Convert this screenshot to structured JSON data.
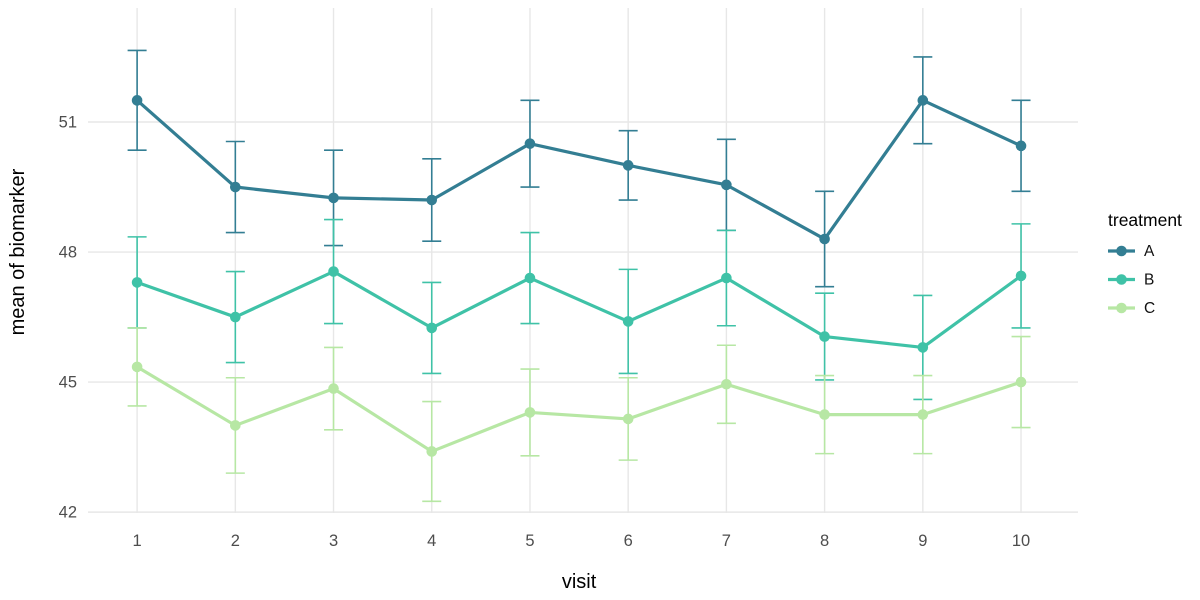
{
  "chart_data": {
    "type": "line",
    "title": "",
    "xlabel": "visit",
    "ylabel": "mean of biomarker",
    "x": [
      1,
      2,
      3,
      4,
      5,
      6,
      7,
      8,
      9,
      10
    ],
    "x_tick_labels": [
      "1",
      "2",
      "3",
      "4",
      "5",
      "6",
      "7",
      "8",
      "9",
      "10"
    ],
    "y_ticks": [
      42,
      45,
      48,
      51
    ],
    "y_tick_labels": [
      "42",
      "45",
      "48",
      "51"
    ],
    "xlim": [
      0.5,
      10.58
    ],
    "ylim": [
      41.98,
      53.63
    ],
    "grid": "major-only",
    "legend_title": "treatment",
    "legend_position": "right",
    "error_bars": true,
    "series": [
      {
        "name": "A",
        "color": "#337e93",
        "means": [
          51.5,
          49.5,
          49.25,
          49.2,
          50.5,
          50.0,
          49.55,
          48.3,
          51.5,
          50.45
        ],
        "errors": [
          1.15,
          1.05,
          1.1,
          0.95,
          1.0,
          0.8,
          1.05,
          1.1,
          1.0,
          1.05
        ]
      },
      {
        "name": "B",
        "color": "#3fc2a7",
        "means": [
          47.3,
          46.5,
          47.55,
          46.25,
          47.4,
          46.4,
          47.4,
          46.05,
          45.8,
          47.45
        ],
        "errors": [
          1.05,
          1.05,
          1.2,
          1.05,
          1.05,
          1.2,
          1.1,
          1.0,
          1.2,
          1.2
        ]
      },
      {
        "name": "C",
        "color": "#b7e7a4",
        "means": [
          45.35,
          44.0,
          44.85,
          43.4,
          44.3,
          44.15,
          44.95,
          44.25,
          44.25,
          45.0
        ],
        "errors": [
          0.9,
          1.1,
          0.95,
          1.15,
          1.0,
          0.95,
          0.9,
          0.9,
          0.9,
          1.05
        ]
      }
    ]
  },
  "style": {
    "background": "#ffffff",
    "grid_color": "#e7e7e7",
    "tick_label_color": "#4d4d4d",
    "axis_title_color": "#000000",
    "legend_title_color": "#000000",
    "legend_label_color": "#111111"
  }
}
